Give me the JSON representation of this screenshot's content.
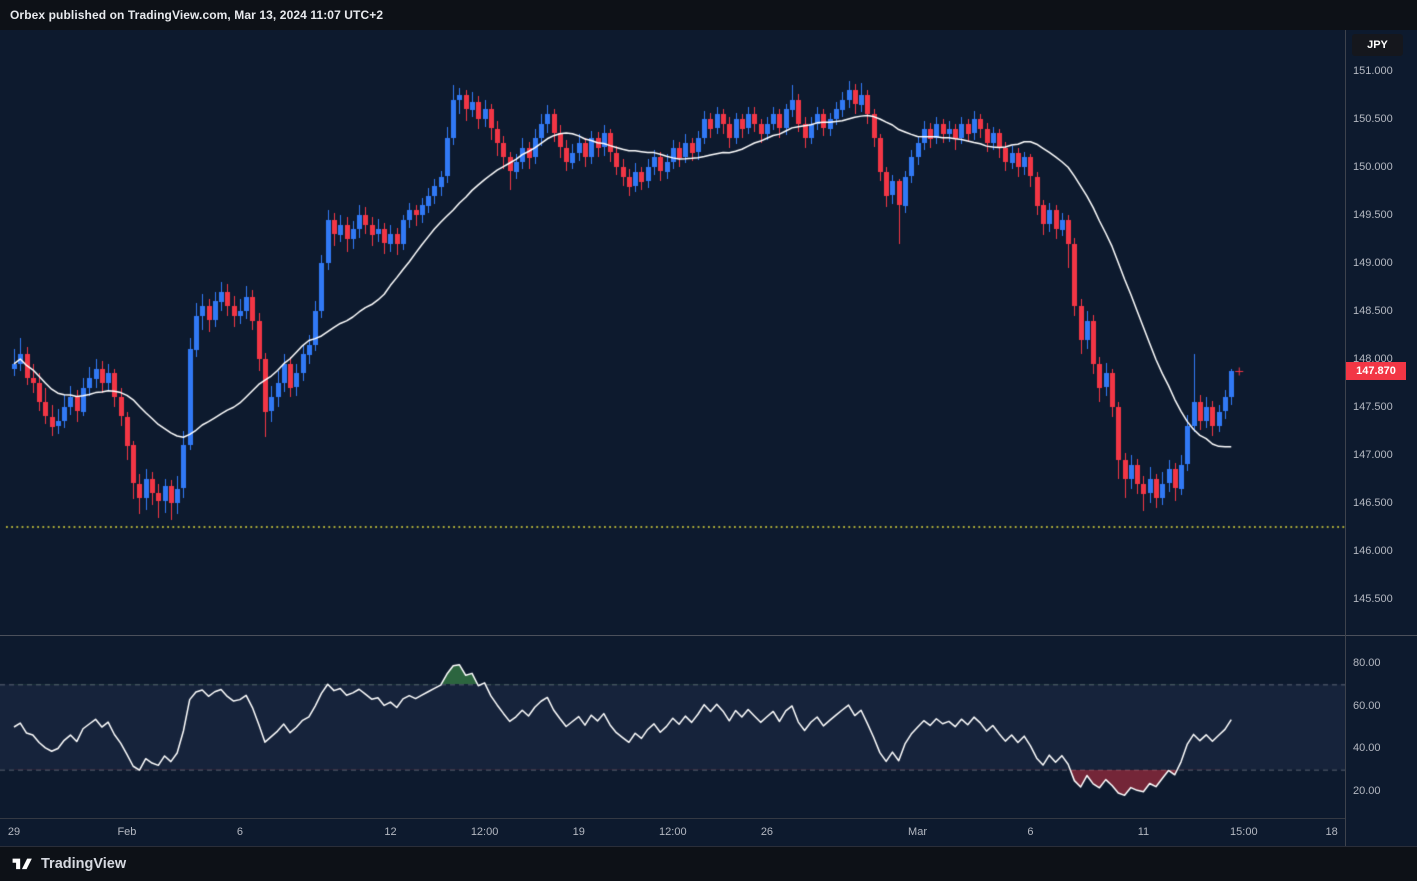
{
  "header": {
    "text": "Orbex published on TradingView.com, Mar 13, 2024 11:07 UTC+2"
  },
  "footer": {
    "brand": "TradingView",
    "logo_icon": "tradingview-mark"
  },
  "price_axis": {
    "currency_label": "JPY",
    "last_price_label": "147.870"
  },
  "chart_data": {
    "type": "candlestick",
    "title": "",
    "legend_position": "none",
    "grid": "off",
    "colors": {
      "background": "#0d1a2e",
      "up": "#3179f5",
      "down": "#f23645",
      "ma_line": "#ffffff",
      "rsi_line": "#ffffff",
      "band_line": "rgba(255,255,255,0.30)",
      "band_fill": "rgba(137,151,222,0.08)",
      "overbought_fill": "rgba(76,175,80,0.50)",
      "oversold_fill": "rgba(242,54,69,0.45)",
      "support_line": "#e8e33d",
      "axis_text": "#b4b8c1"
    },
    "pane_main": {
      "ylabel": "",
      "ylim": [
        145.125,
        151.4167
      ],
      "y_ticks": [
        "151.000",
        "150.500",
        "150.000",
        "149.500",
        "149.000",
        "148.500",
        "148.000",
        "147.500",
        "147.000",
        "146.500",
        "146.000",
        "145.500"
      ],
      "last_price": 147.87,
      "support_line_price": 146.25,
      "sma_period": 20,
      "candles": [
        [
          147.9,
          148.1,
          147.82,
          147.95
        ],
        [
          147.95,
          148.22,
          147.88,
          148.05
        ],
        [
          148.05,
          148.12,
          147.72,
          147.8
        ],
        [
          147.8,
          147.95,
          147.65,
          147.75
        ],
        [
          147.75,
          147.85,
          147.45,
          147.55
        ],
        [
          147.55,
          147.7,
          147.32,
          147.4
        ],
        [
          147.4,
          147.52,
          147.2,
          147.3
        ],
        [
          147.3,
          147.48,
          147.22,
          147.35
        ],
        [
          147.35,
          147.62,
          147.28,
          147.5
        ],
        [
          147.5,
          147.72,
          147.42,
          147.6
        ],
        [
          147.6,
          147.68,
          147.35,
          147.45
        ],
        [
          147.45,
          147.8,
          147.4,
          147.7
        ],
        [
          147.7,
          147.92,
          147.62,
          147.8
        ],
        [
          147.8,
          148.0,
          147.7,
          147.9
        ],
        [
          147.9,
          147.98,
          147.65,
          147.75
        ],
        [
          147.75,
          147.95,
          147.68,
          147.85
        ],
        [
          147.85,
          147.9,
          147.5,
          147.6
        ],
        [
          147.6,
          147.7,
          147.3,
          147.4
        ],
        [
          147.4,
          147.45,
          146.95,
          147.1
        ],
        [
          147.1,
          147.15,
          146.55,
          146.7
        ],
        [
          146.7,
          146.8,
          146.38,
          146.55
        ],
        [
          146.55,
          146.85,
          146.42,
          146.75
        ],
        [
          146.75,
          146.82,
          146.48,
          146.6
        ],
        [
          146.6,
          146.7,
          146.35,
          146.52
        ],
        [
          146.52,
          146.75,
          146.4,
          146.68
        ],
        [
          146.68,
          146.74,
          146.32,
          146.5
        ],
        [
          146.5,
          146.78,
          146.38,
          146.65
        ],
        [
          146.65,
          147.25,
          146.55,
          147.1
        ],
        [
          147.1,
          148.22,
          147.05,
          148.1
        ],
        [
          148.1,
          148.58,
          148.02,
          148.45
        ],
        [
          148.45,
          148.68,
          148.3,
          148.55
        ],
        [
          148.55,
          148.62,
          148.28,
          148.4
        ],
        [
          148.4,
          148.7,
          148.34,
          148.6
        ],
        [
          148.6,
          148.8,
          148.5,
          148.7
        ],
        [
          148.7,
          148.78,
          148.45,
          148.55
        ],
        [
          148.55,
          148.66,
          148.34,
          148.45
        ],
        [
          148.45,
          148.62,
          148.36,
          148.5
        ],
        [
          148.5,
          148.76,
          148.42,
          148.65
        ],
        [
          148.65,
          148.72,
          148.3,
          148.4
        ],
        [
          148.4,
          148.48,
          147.88,
          148.0
        ],
        [
          148.0,
          148.06,
          147.18,
          147.45
        ],
        [
          147.45,
          147.72,
          147.35,
          147.6
        ],
        [
          147.6,
          147.88,
          147.5,
          147.75
        ],
        [
          147.75,
          148.05,
          147.65,
          147.95
        ],
        [
          147.95,
          148.02,
          147.6,
          147.7
        ],
        [
          147.7,
          147.95,
          147.62,
          147.85
        ],
        [
          147.85,
          148.15,
          147.78,
          148.05
        ],
        [
          148.05,
          148.25,
          147.95,
          148.15
        ],
        [
          148.15,
          148.6,
          148.08,
          148.5
        ],
        [
          148.5,
          149.08,
          148.42,
          149.0
        ],
        [
          149.0,
          149.55,
          148.92,
          149.45
        ],
        [
          149.45,
          149.52,
          149.18,
          149.3
        ],
        [
          149.3,
          149.5,
          149.22,
          149.4
        ],
        [
          149.4,
          149.48,
          149.12,
          149.25
        ],
        [
          149.25,
          149.44,
          149.15,
          149.35
        ],
        [
          149.35,
          149.6,
          149.26,
          149.5
        ],
        [
          149.5,
          149.58,
          149.3,
          149.4
        ],
        [
          149.4,
          149.48,
          149.18,
          149.3
        ],
        [
          149.3,
          149.46,
          149.22,
          149.35
        ],
        [
          149.35,
          149.42,
          149.1,
          149.2
        ],
        [
          149.2,
          149.4,
          149.12,
          149.3
        ],
        [
          149.3,
          149.36,
          149.08,
          149.2
        ],
        [
          149.2,
          149.5,
          149.14,
          149.45
        ],
        [
          149.45,
          149.62,
          149.36,
          149.55
        ],
        [
          149.55,
          149.6,
          149.38,
          149.5
        ],
        [
          149.5,
          149.68,
          149.42,
          149.6
        ],
        [
          149.6,
          149.78,
          149.52,
          149.7
        ],
        [
          149.7,
          149.88,
          149.62,
          149.8
        ],
        [
          149.8,
          149.96,
          149.7,
          149.9
        ],
        [
          149.9,
          150.42,
          149.84,
          150.3
        ],
        [
          150.3,
          150.85,
          150.22,
          150.7
        ],
        [
          150.7,
          150.82,
          150.55,
          150.75
        ],
        [
          150.75,
          150.8,
          150.48,
          150.6
        ],
        [
          150.6,
          150.78,
          150.52,
          150.68
        ],
        [
          150.68,
          150.74,
          150.4,
          150.5
        ],
        [
          150.5,
          150.7,
          150.42,
          150.6
        ],
        [
          150.6,
          150.66,
          150.28,
          150.4
        ],
        [
          150.4,
          150.48,
          150.12,
          150.25
        ],
        [
          150.25,
          150.32,
          149.98,
          150.1
        ],
        [
          150.1,
          150.16,
          149.76,
          149.95
        ],
        [
          149.95,
          150.14,
          149.88,
          150.05
        ],
        [
          150.05,
          150.3,
          149.98,
          150.2
        ],
        [
          150.2,
          150.26,
          149.98,
          150.1
        ],
        [
          150.1,
          150.4,
          150.04,
          150.3
        ],
        [
          150.3,
          150.55,
          150.22,
          150.45
        ],
        [
          150.45,
          150.65,
          150.36,
          150.55
        ],
        [
          150.55,
          150.6,
          150.26,
          150.35
        ],
        [
          150.35,
          150.44,
          150.1,
          150.2
        ],
        [
          150.2,
          150.28,
          149.96,
          150.05
        ],
        [
          150.05,
          150.24,
          149.98,
          150.15
        ],
        [
          150.15,
          150.34,
          150.06,
          150.25
        ],
        [
          150.25,
          150.3,
          150.0,
          150.1
        ],
        [
          150.1,
          150.38,
          150.04,
          150.3
        ],
        [
          150.3,
          150.36,
          150.1,
          150.2
        ],
        [
          150.2,
          150.44,
          150.12,
          150.35
        ],
        [
          150.35,
          150.4,
          150.06,
          150.15
        ],
        [
          150.15,
          150.22,
          149.92,
          150.0
        ],
        [
          150.0,
          150.08,
          149.8,
          149.9
        ],
        [
          149.9,
          149.98,
          149.7,
          149.8
        ],
        [
          149.8,
          150.04,
          149.74,
          149.95
        ],
        [
          149.95,
          150.0,
          149.76,
          149.85
        ],
        [
          149.85,
          150.08,
          149.78,
          150.0
        ],
        [
          150.0,
          150.18,
          149.92,
          150.1
        ],
        [
          150.1,
          150.16,
          149.86,
          149.95
        ],
        [
          149.95,
          150.14,
          149.88,
          150.05
        ],
        [
          150.05,
          150.28,
          149.98,
          150.2
        ],
        [
          150.2,
          150.26,
          150.0,
          150.1
        ],
        [
          150.1,
          150.34,
          150.04,
          150.25
        ],
        [
          150.25,
          150.3,
          150.06,
          150.15
        ],
        [
          150.15,
          150.38,
          150.08,
          150.3
        ],
        [
          150.3,
          150.58,
          150.24,
          150.5
        ],
        [
          150.5,
          150.56,
          150.3,
          150.4
        ],
        [
          150.4,
          150.62,
          150.34,
          150.55
        ],
        [
          150.55,
          150.6,
          150.34,
          150.45
        ],
        [
          150.45,
          150.52,
          150.2,
          150.3
        ],
        [
          150.3,
          150.56,
          150.24,
          150.5
        ],
        [
          150.5,
          150.55,
          150.3,
          150.4
        ],
        [
          150.4,
          150.62,
          150.34,
          150.55
        ],
        [
          150.55,
          150.62,
          150.36,
          150.45
        ],
        [
          150.45,
          150.5,
          150.25,
          150.35
        ],
        [
          150.35,
          150.52,
          150.28,
          150.45
        ],
        [
          150.45,
          150.62,
          150.38,
          150.55
        ],
        [
          150.55,
          150.6,
          150.3,
          150.4
        ],
        [
          150.4,
          150.66,
          150.34,
          150.6
        ],
        [
          150.6,
          150.85,
          150.52,
          150.7
        ],
        [
          150.7,
          150.76,
          150.36,
          150.45
        ],
        [
          150.45,
          150.52,
          150.2,
          150.3
        ],
        [
          150.3,
          150.52,
          150.24,
          150.45
        ],
        [
          150.45,
          150.62,
          150.38,
          150.55
        ],
        [
          150.55,
          150.6,
          150.32,
          150.4
        ],
        [
          150.4,
          150.56,
          150.32,
          150.5
        ],
        [
          150.5,
          150.68,
          150.44,
          150.6
        ],
        [
          150.6,
          150.78,
          150.52,
          150.7
        ],
        [
          150.7,
          150.9,
          150.62,
          150.8
        ],
        [
          150.8,
          150.86,
          150.55,
          150.65
        ],
        [
          150.65,
          150.88,
          150.58,
          150.75
        ],
        [
          150.75,
          150.8,
          150.45,
          150.55
        ],
        [
          150.55,
          150.6,
          150.2,
          150.3
        ],
        [
          150.3,
          150.34,
          149.85,
          149.95
        ],
        [
          149.95,
          150.0,
          149.58,
          149.7
        ],
        [
          149.7,
          149.92,
          149.62,
          149.85
        ],
        [
          149.85,
          149.88,
          149.2,
          149.6
        ],
        [
          149.6,
          149.96,
          149.52,
          149.9
        ],
        [
          149.9,
          150.18,
          149.84,
          150.1
        ],
        [
          150.1,
          150.32,
          150.02,
          150.25
        ],
        [
          150.25,
          150.48,
          150.18,
          150.4
        ],
        [
          150.4,
          150.46,
          150.2,
          150.3
        ],
        [
          150.3,
          150.52,
          150.24,
          150.45
        ],
        [
          150.45,
          150.5,
          150.25,
          150.35
        ],
        [
          150.35,
          150.48,
          150.26,
          150.4
        ],
        [
          150.4,
          150.45,
          150.18,
          150.3
        ],
        [
          150.3,
          150.52,
          150.24,
          150.45
        ],
        [
          150.45,
          150.5,
          150.26,
          150.35
        ],
        [
          150.35,
          150.58,
          150.28,
          150.5
        ],
        [
          150.5,
          150.55,
          150.3,
          150.4
        ],
        [
          150.4,
          150.46,
          150.16,
          150.25
        ],
        [
          150.25,
          150.42,
          150.18,
          150.35
        ],
        [
          150.35,
          150.4,
          150.1,
          150.2
        ],
        [
          150.2,
          150.26,
          149.96,
          150.05
        ],
        [
          150.05,
          150.22,
          149.98,
          150.15
        ],
        [
          150.15,
          150.2,
          149.9,
          150.0
        ],
        [
          150.0,
          150.16,
          149.92,
          150.1
        ],
        [
          150.1,
          150.14,
          149.8,
          149.9
        ],
        [
          149.9,
          149.95,
          149.5,
          149.6
        ],
        [
          149.6,
          149.66,
          149.3,
          149.4
        ],
        [
          149.4,
          149.62,
          149.32,
          149.55
        ],
        [
          149.55,
          149.6,
          149.25,
          149.35
        ],
        [
          149.35,
          149.52,
          149.28,
          149.45
        ],
        [
          149.45,
          149.5,
          148.95,
          149.2
        ],
        [
          149.2,
          149.26,
          148.45,
          148.55
        ],
        [
          148.55,
          148.62,
          148.05,
          148.2
        ],
        [
          148.2,
          148.5,
          148.1,
          148.4
        ],
        [
          148.4,
          148.46,
          147.85,
          147.95
        ],
        [
          147.95,
          148.02,
          147.55,
          147.7
        ],
        [
          147.7,
          147.96,
          147.62,
          147.85
        ],
        [
          147.85,
          147.9,
          147.4,
          147.5
        ],
        [
          147.5,
          147.55,
          146.75,
          146.95
        ],
        [
          146.95,
          147.02,
          146.55,
          146.75
        ],
        [
          146.75,
          147.0,
          146.65,
          146.9
        ],
        [
          146.9,
          146.96,
          146.6,
          146.7
        ],
        [
          146.7,
          146.78,
          146.42,
          146.6
        ],
        [
          146.6,
          146.88,
          146.5,
          146.75
        ],
        [
          146.75,
          146.8,
          146.45,
          146.55
        ],
        [
          146.55,
          146.82,
          146.48,
          146.7
        ],
        [
          146.7,
          146.95,
          146.62,
          146.85
        ],
        [
          146.85,
          146.92,
          146.52,
          146.65
        ],
        [
          146.65,
          147.0,
          146.58,
          146.9
        ],
        [
          146.9,
          147.42,
          146.84,
          147.3
        ],
        [
          147.3,
          148.05,
          147.24,
          147.55
        ],
        [
          147.55,
          147.62,
          147.26,
          147.35
        ],
        [
          147.35,
          147.6,
          147.28,
          147.5
        ],
        [
          147.5,
          147.56,
          147.2,
          147.3
        ],
        [
          147.3,
          147.52,
          147.24,
          147.45
        ],
        [
          147.45,
          147.68,
          147.38,
          147.6
        ],
        [
          147.6,
          147.9,
          147.52,
          147.87
        ]
      ]
    },
    "pane_rsi": {
      "name": "RSI",
      "period": 14,
      "ylim": [
        7,
        93
      ],
      "y_ticks": [
        "80.00",
        "60.00",
        "40.00",
        "20.00"
      ],
      "overbought": 70,
      "oversold": 30
    },
    "x_ticks": [
      {
        "label": "29",
        "index": 0
      },
      {
        "label": "Feb",
        "index": 18
      },
      {
        "label": "6",
        "index": 36
      },
      {
        "label": "12",
        "index": 60
      },
      {
        "label": "12:00",
        "index": 75
      },
      {
        "label": "19",
        "index": 90
      },
      {
        "label": "12:00",
        "index": 105
      },
      {
        "label": "26",
        "index": 120
      },
      {
        "label": "Mar",
        "index": 144
      },
      {
        "label": "6",
        "index": 162
      },
      {
        "label": "11",
        "index": 180
      },
      {
        "label": "15:00",
        "index": 196
      },
      {
        "label": "18",
        "index": 210
      }
    ]
  }
}
